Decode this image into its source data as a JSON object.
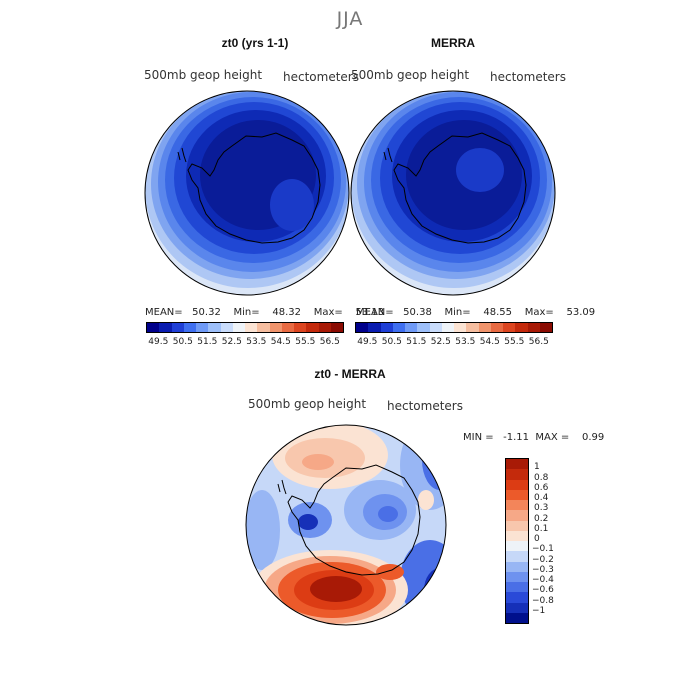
{
  "title": "JJA",
  "panels": [
    {
      "title": "zt0 (yrs 1-1)",
      "variable": "500mb  geop  height",
      "units": "hectometers",
      "stats": "MEAN=   50.32    Min=    48.32    Max=    53.13"
    },
    {
      "title": "MERRA",
      "variable": "500mb  geop  height",
      "units": "hectometers",
      "stats": "MEAN=   50.38    Min=    48.55    Max=    53.09"
    }
  ],
  "colorbar_top": {
    "labels": [
      "49.5",
      "50.5",
      "51.5",
      "52.5",
      "53.5",
      "54.5",
      "55.5",
      "56.5"
    ],
    "colors": [
      "#00008b",
      "#0a1cb0",
      "#1f3fd6",
      "#3f6ff0",
      "#6f9af6",
      "#9ec0fa",
      "#c9dcfb",
      "#eef3f8",
      "#fbe3d3",
      "#f6bea0",
      "#f0946c",
      "#e86a42",
      "#dc4520",
      "#c42a0c",
      "#a81a06",
      "#8a0b02"
    ]
  },
  "difference": {
    "title": "zt0 - MERRA",
    "variable": "500mb  geop  height",
    "units": "hectometers",
    "stats": "MIN =   -1.11  MAX =    0.99",
    "colorbar_labels": [
      "1",
      "0.8",
      "0.6",
      "0.4",
      "0.3",
      "0.2",
      "0.1",
      "0",
      "-0.1",
      "-0.2",
      "-0.3",
      "-0.4",
      "-0.6",
      "-0.8",
      "-1"
    ],
    "colorbar_colors": [
      "#a81a06",
      "#c42a0c",
      "#dc3c14",
      "#ec5a2a",
      "#f3855a",
      "#f6a887",
      "#f8c7ad",
      "#fbe3d3",
      "#eef3f8",
      "#c6d8f8",
      "#98b6f4",
      "#6e92ef",
      "#4a6fe6",
      "#2a4ad8",
      "#1630b8",
      "#00108c"
    ]
  }
}
